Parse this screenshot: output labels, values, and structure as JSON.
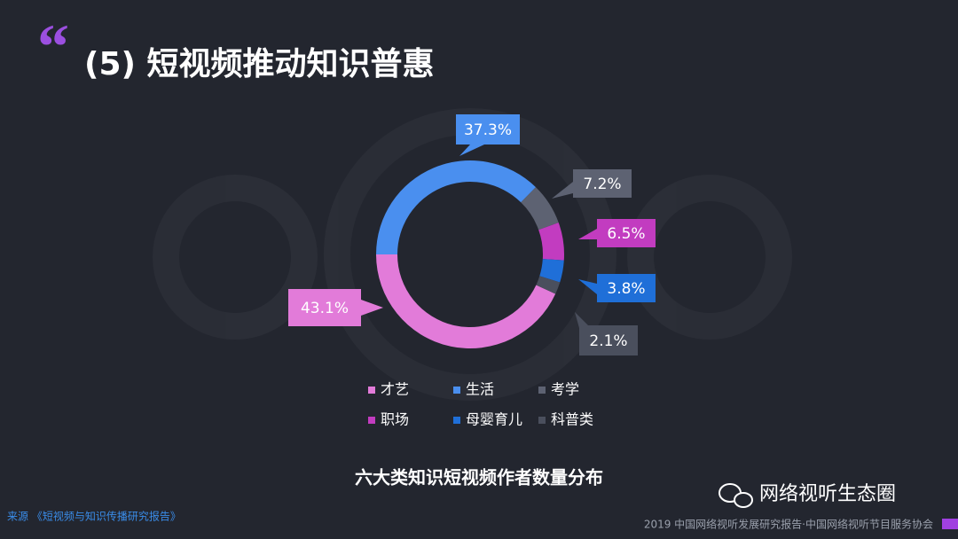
{
  "header": {
    "title": "(5) 短视频推动知识普惠"
  },
  "chart_data": {
    "type": "pie",
    "donut": true,
    "title": "六大类知识短视频作者数量分布",
    "categories": [
      "才艺",
      "生活",
      "考学",
      "职场",
      "母婴育儿",
      "科普类"
    ],
    "values": [
      43.1,
      37.3,
      7.2,
      6.5,
      3.8,
      2.1
    ],
    "value_labels": [
      "43.1%",
      "37.3%",
      "7.2%",
      "6.5%",
      "3.8%",
      "2.1%"
    ],
    "colors": [
      "#e27bd9",
      "#4a8fef",
      "#5d6272",
      "#c23cc0",
      "#1f6fd8",
      "#4a4f5d"
    ]
  },
  "footer": {
    "source": "来源 《短视频与知识传播研究报告》",
    "report": "2019 中国网络视听发展研究报告·中国网络视听节目服务协会"
  },
  "watermark": {
    "text": "网络视听生态圈"
  }
}
